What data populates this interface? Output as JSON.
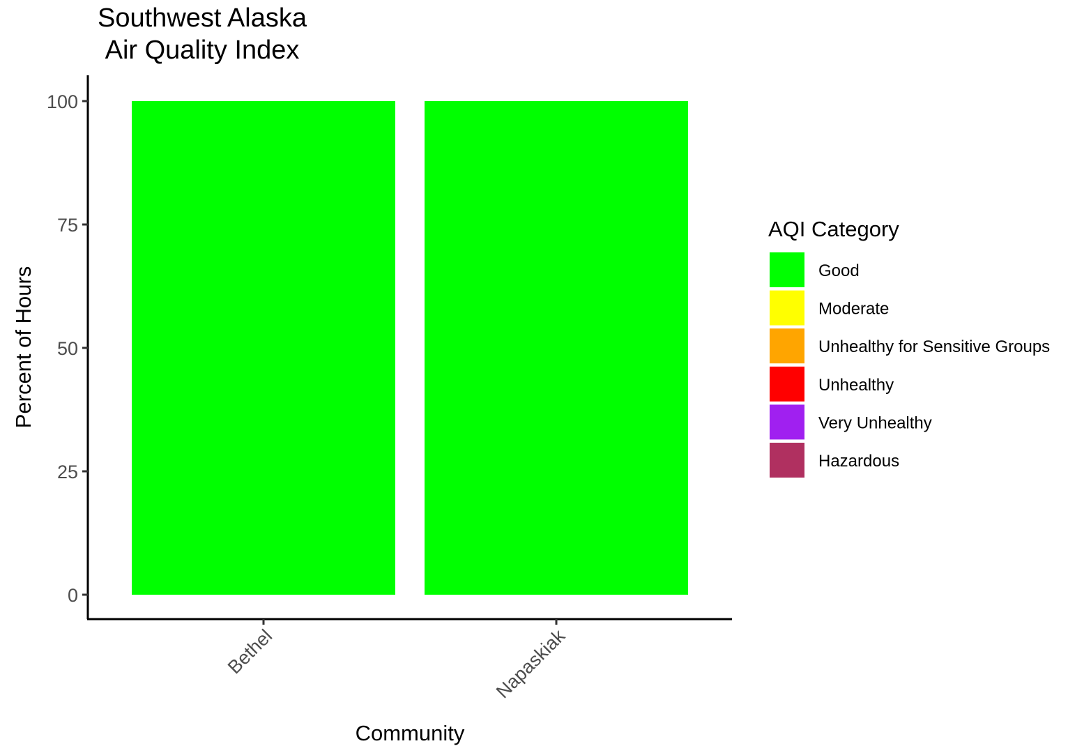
{
  "chart_data": {
    "type": "bar",
    "title_lines": [
      "Southwest Alaska",
      "Air Quality Index"
    ],
    "xlabel": "Community",
    "ylabel": "Percent of Hours",
    "categories": [
      "Bethel",
      "Napaskiak"
    ],
    "series": [
      {
        "name": "Good",
        "values": [
          100,
          100
        ]
      },
      {
        "name": "Moderate",
        "values": [
          0,
          0
        ]
      },
      {
        "name": "Unhealthy for Sensitive Groups",
        "values": [
          0,
          0
        ]
      },
      {
        "name": "Unhealthy",
        "values": [
          0,
          0
        ]
      },
      {
        "name": "Very Unhealthy",
        "values": [
          0,
          0
        ]
      },
      {
        "name": "Hazardous",
        "values": [
          0,
          0
        ]
      }
    ],
    "colors": {
      "Good": "#00ff00",
      "Moderate": "#ffff00",
      "Unhealthy for Sensitive Groups": "#ffa500",
      "Unhealthy": "#ff0000",
      "Very Unhealthy": "#a020f0",
      "Hazardous": "#b03060"
    },
    "y_ticks": [
      0,
      25,
      50,
      75,
      100
    ],
    "ylim": [
      0,
      100
    ],
    "stacked": true,
    "grid": false,
    "legend": {
      "title": "AQI Category",
      "placement": "right",
      "items": [
        "Good",
        "Moderate",
        "Unhealthy for Sensitive Groups",
        "Unhealthy",
        "Very Unhealthy",
        "Hazardous"
      ]
    }
  }
}
